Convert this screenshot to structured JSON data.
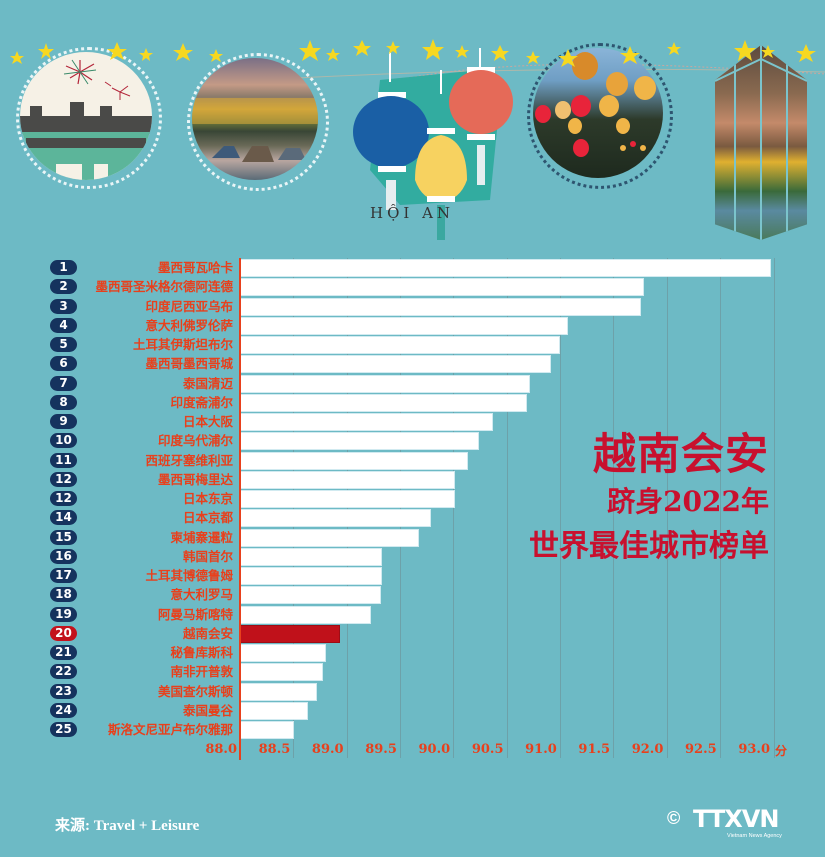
{
  "header": {
    "logo_text": "HỘI AN",
    "images": [
      {
        "name": "japanese-bridge-illustration",
        "desc": "Covered bridge with fireworks"
      },
      {
        "name": "riverside-old-town-photo",
        "desc": "Old town by the river with boats"
      },
      {
        "name": "lanterns-illustration",
        "desc": "Blue, yellow and red lanterns"
      },
      {
        "name": "night-lanterns-photo",
        "desc": "Lanterns lit at night"
      },
      {
        "name": "aerial-street-photo",
        "desc": "Aerial view of old town street"
      }
    ]
  },
  "title": {
    "line1": "越南会安",
    "line2": "跻身2022年",
    "line3": "世界最佳城市榜单"
  },
  "colors": {
    "background": "#6dbac5",
    "bar": "#ffffff",
    "highlight": "#c0111a",
    "label": "#e8401c",
    "badge": "#15335e",
    "title": "#c8102e"
  },
  "chart_data": {
    "type": "bar",
    "orientation": "horizontal",
    "title": "越南会安 跻身2022年 世界最佳城市榜单",
    "xlabel": "分",
    "ylabel": "",
    "xlim": [
      88.0,
      93.0
    ],
    "grid": true,
    "x_ticks": [
      "88.0",
      "88.5",
      "89.0",
      "89.5",
      "90.0",
      "90.5",
      "91.0",
      "91.5",
      "92.0",
      "92.5",
      "93.0"
    ],
    "unit": "分",
    "highlight_index": 19,
    "rows": [
      {
        "rank": "1",
        "city": "墨西哥瓦哈卡",
        "value": 92.96
      },
      {
        "rank": "2",
        "city": "墨西哥圣米格尔德阿连德",
        "value": 91.77
      },
      {
        "rank": "3",
        "city": "印度尼西亚乌布",
        "value": 91.74
      },
      {
        "rank": "4",
        "city": "意大利佛罗伦萨",
        "value": 91.06
      },
      {
        "rank": "5",
        "city": "土耳其伊斯坦布尔",
        "value": 90.98
      },
      {
        "rank": "6",
        "city": "墨西哥墨西哥城",
        "value": 90.9
      },
      {
        "rank": "7",
        "city": "泰国清迈",
        "value": 90.7
      },
      {
        "rank": "8",
        "city": "印度斋浦尔",
        "value": 90.67
      },
      {
        "rank": "9",
        "city": "日本大阪",
        "value": 90.35
      },
      {
        "rank": "10",
        "city": "印度乌代浦尔",
        "value": 90.22
      },
      {
        "rank": "11",
        "city": "西班牙塞维利亚",
        "value": 90.12
      },
      {
        "rank": "12",
        "city": "墨西哥梅里达",
        "value": 90.0
      },
      {
        "rank": "12",
        "city": "日本东京",
        "value": 90.0
      },
      {
        "rank": "14",
        "city": "日本京都",
        "value": 89.77
      },
      {
        "rank": "15",
        "city": "柬埔寨暹粒",
        "value": 89.66
      },
      {
        "rank": "16",
        "city": "韩国首尔",
        "value": 89.31
      },
      {
        "rank": "17",
        "city": "土耳其博德鲁姆",
        "value": 89.31
      },
      {
        "rank": "18",
        "city": "意大利罗马",
        "value": 89.3
      },
      {
        "rank": "19",
        "city": "阿曼马斯喀特",
        "value": 89.21
      },
      {
        "rank": "20",
        "city": "越南会安",
        "value": 88.92
      },
      {
        "rank": "21",
        "city": "秘鲁库斯科",
        "value": 88.79
      },
      {
        "rank": "22",
        "city": "南非开普敦",
        "value": 88.76
      },
      {
        "rank": "23",
        "city": "美国查尔斯顿",
        "value": 88.7
      },
      {
        "rank": "24",
        "city": "泰国曼谷",
        "value": 88.62
      },
      {
        "rank": "25",
        "city": "斯洛文尼亚卢布尔雅那",
        "value": 88.49
      }
    ]
  },
  "footer": {
    "source": "来源: Travel + Leisure",
    "copyright_symbol": "©",
    "logo": "TTXVN",
    "logo_subtitle": "Vietnam News Agency"
  }
}
